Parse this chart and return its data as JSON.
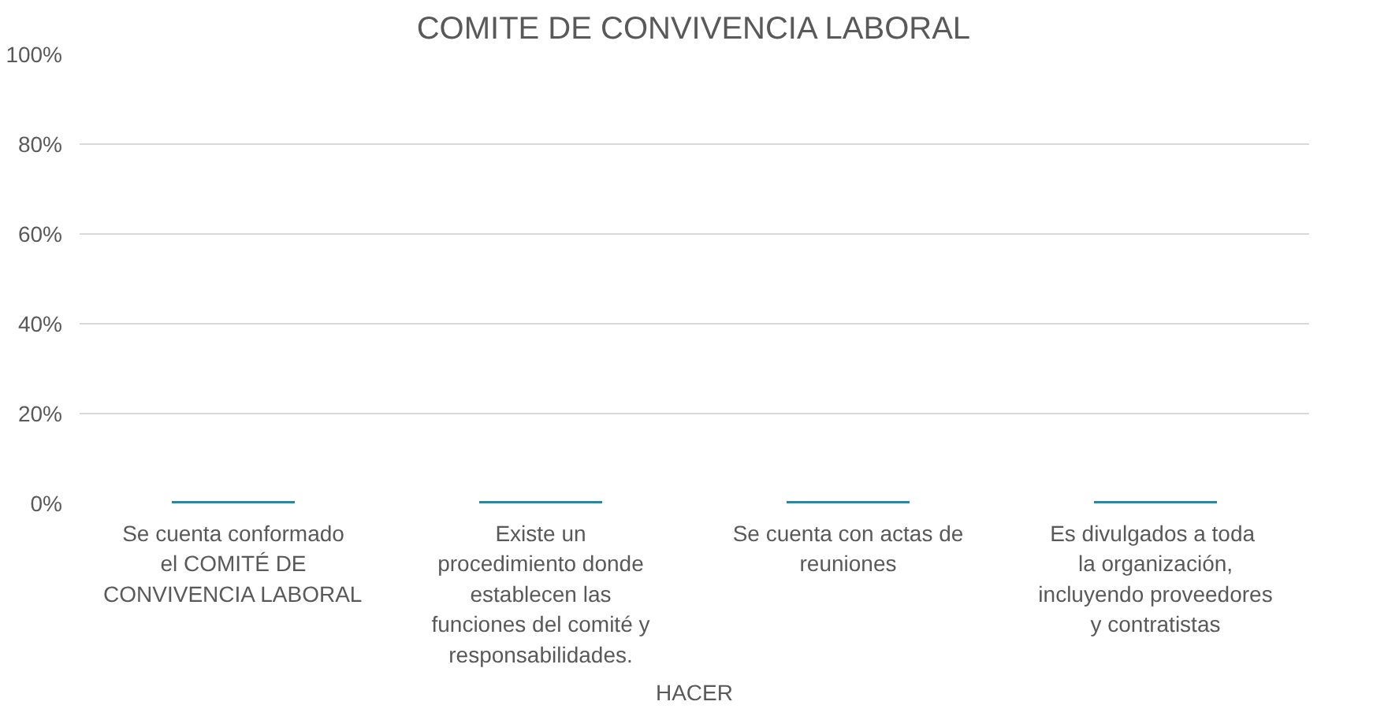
{
  "chart_data": {
    "type": "bar",
    "title": "COMITE DE CONVIVENCIA LABORAL",
    "xlabel": "HACER",
    "categories": [
      "Se cuenta conformado el COMITÉ DE CONVIVENCIA LABORAL",
      "Existe un procedimiento donde establecen las funciones del comité y responsabilidades.",
      "Se cuenta con actas de reuniones",
      "Es  divulgados a toda la organización, incluyendo proveedores y contratistas"
    ],
    "values": [
      0,
      0,
      0,
      0
    ],
    "color": "#31849b",
    "ylim": [
      0,
      100
    ],
    "yticks": [
      {
        "value": 0,
        "label": "0%"
      },
      {
        "value": 20,
        "label": "20%"
      },
      {
        "value": 40,
        "label": "40%"
      },
      {
        "value": 60,
        "label": "60%"
      },
      {
        "value": 80,
        "label": "80%"
      },
      {
        "value": 100,
        "label": "100%"
      }
    ],
    "grid": "y"
  }
}
